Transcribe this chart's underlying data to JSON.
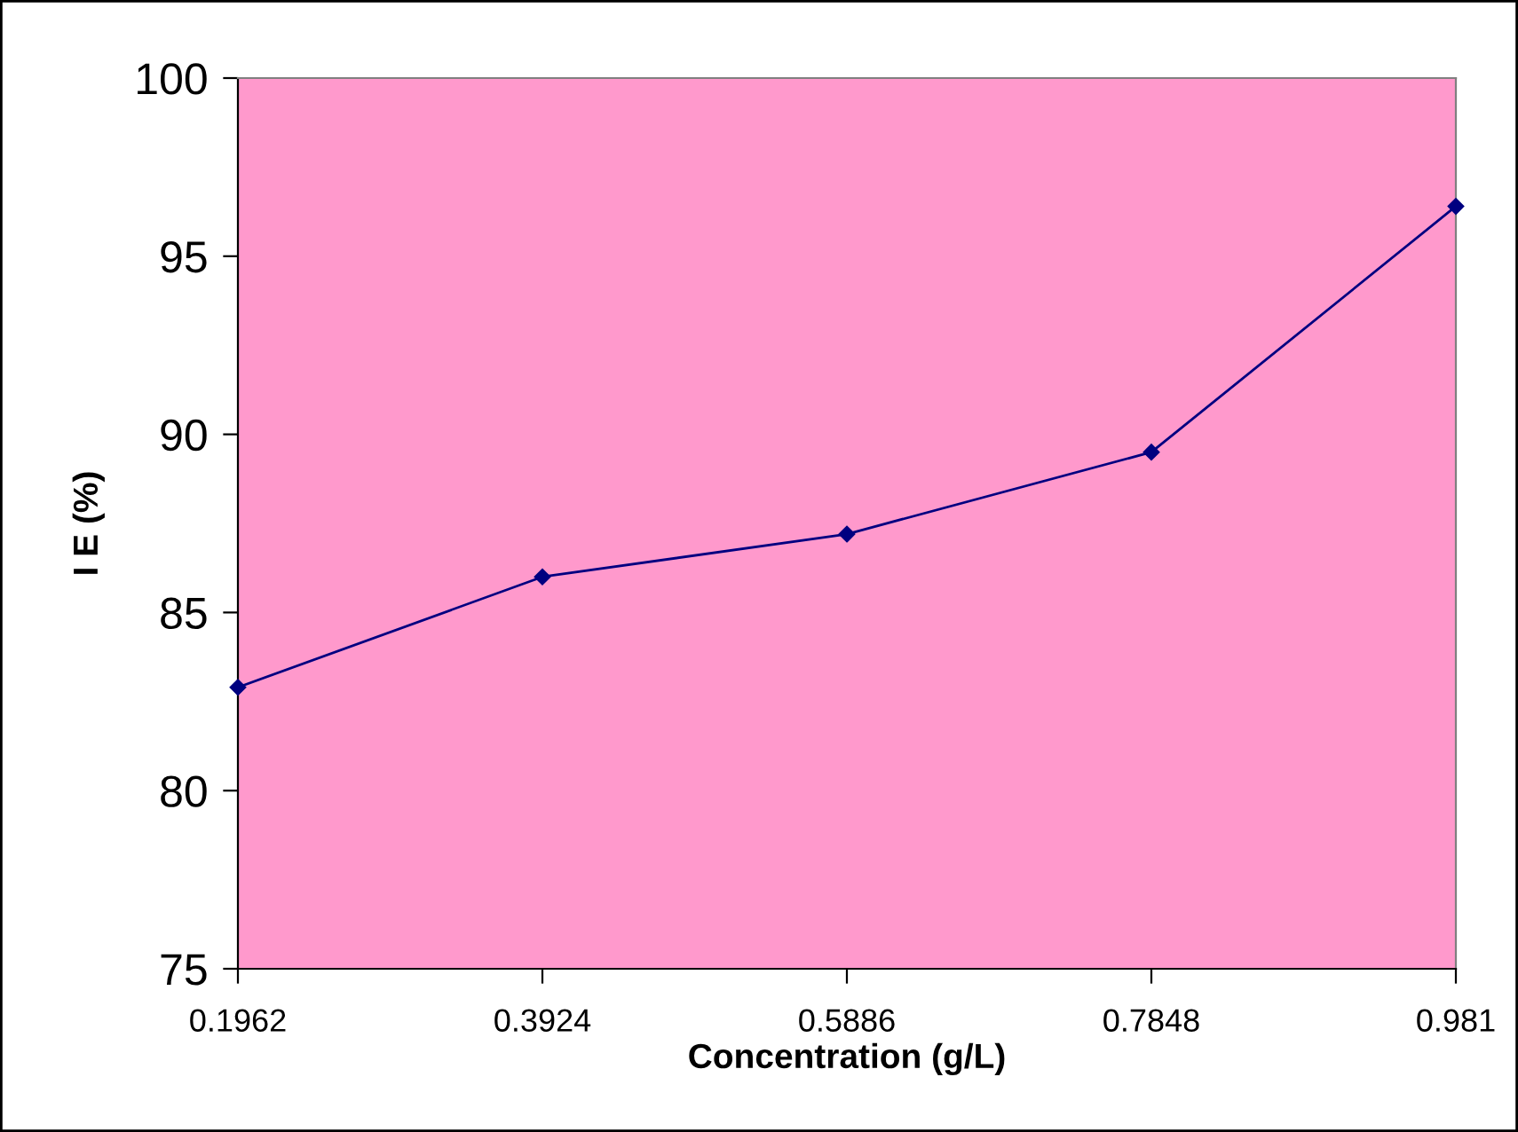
{
  "chart_data": {
    "type": "line",
    "xlabel": "Concentration (g/L)",
    "ylabel": "I E (%)",
    "x": [
      0.1962,
      0.3924,
      0.5886,
      0.7848,
      0.981
    ],
    "series": [
      {
        "color": "#000080",
        "values": [
          82.9,
          86.0,
          87.2,
          89.5,
          96.4
        ]
      }
    ],
    "xlim": [
      0.1962,
      0.981
    ],
    "xticks": [
      0.1962,
      0.3924,
      0.5886,
      0.7848,
      0.981
    ],
    "ylim": [
      75,
      100
    ],
    "yticks": [
      75,
      80,
      85,
      90,
      95,
      100
    ],
    "marker": "diamond",
    "line_style": "solid",
    "grid": false,
    "legend": false
  }
}
